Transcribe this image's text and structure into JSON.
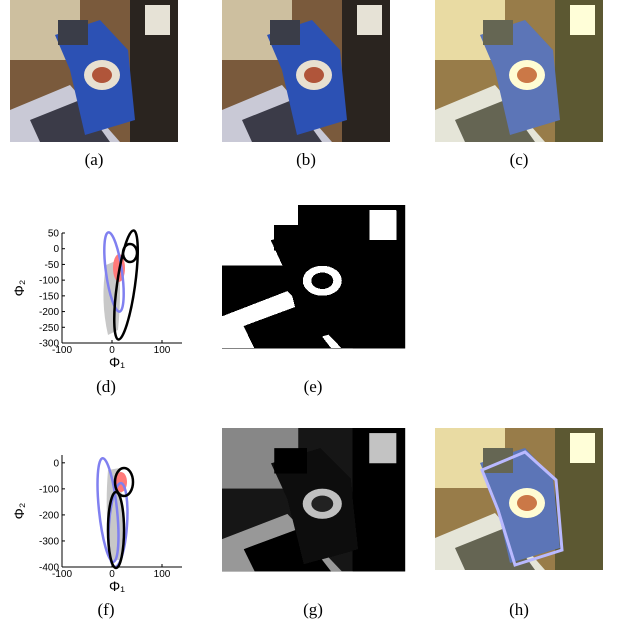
{
  "panels": [
    {
      "label": "(a)"
    },
    {
      "label": "(b)"
    },
    {
      "label": "(c)"
    },
    {
      "label": "(d)"
    },
    {
      "label": "(e)"
    },
    {
      "label": "(f)"
    },
    {
      "label": "(g)"
    },
    {
      "label": "(h)"
    }
  ],
  "plots": [
    {
      "xlim": [
        -100,
        140
      ],
      "xticks": [
        -100,
        0,
        100
      ],
      "ylim": [
        -300,
        50
      ],
      "yticks": [
        50,
        0,
        -50,
        -100,
        -150,
        -200,
        -250,
        -300
      ],
      "xlabel": "Φ₁",
      "ylabel": "Φ₂"
    },
    {
      "xlim": [
        -100,
        140
      ],
      "xticks": [
        -100,
        0,
        100
      ],
      "ylim": [
        -400,
        30
      ],
      "yticks": [
        0,
        -100,
        -200,
        -300,
        -400
      ],
      "xlabel": "Φ₁",
      "ylabel": "Φ₂"
    }
  ]
}
